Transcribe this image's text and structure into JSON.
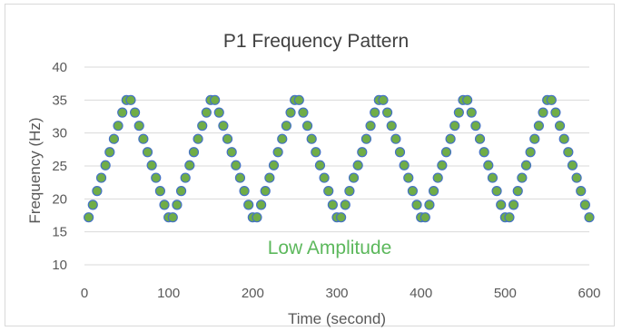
{
  "chart_data": {
    "type": "scatter",
    "title": "P1 Frequency Pattern",
    "xlabel": "Time (second)",
    "ylabel": "Frequency (Hz)",
    "xlim": [
      0,
      600
    ],
    "ylim": [
      10,
      40
    ],
    "x_ticks": [
      "0",
      "100",
      "200",
      "300",
      "400",
      "500",
      "600"
    ],
    "y_ticks": [
      "10",
      "15",
      "20",
      "25",
      "30",
      "35",
      "40"
    ],
    "annotation": "Low Amplitude",
    "grid": "horizontal",
    "legend": "none",
    "marker_fill": "#70ad47",
    "marker_edge": "#4472c4",
    "gridline_color": "#d9d9d9",
    "annotation_color": "#5cb85c",
    "points": [
      {
        "x": 5,
        "y": 17.2
      },
      {
        "x": 10,
        "y": 19.1
      },
      {
        "x": 15,
        "y": 21.2
      },
      {
        "x": 20,
        "y": 23.2
      },
      {
        "x": 25,
        "y": 25.1
      },
      {
        "x": 30,
        "y": 27.1
      },
      {
        "x": 35,
        "y": 29.1
      },
      {
        "x": 40,
        "y": 31.1
      },
      {
        "x": 45,
        "y": 33.1
      },
      {
        "x": 50,
        "y": 35.0
      },
      {
        "x": 55,
        "y": 35.0
      },
      {
        "x": 60,
        "y": 33.1
      },
      {
        "x": 65,
        "y": 31.1
      },
      {
        "x": 70,
        "y": 29.1
      },
      {
        "x": 75,
        "y": 27.1
      },
      {
        "x": 80,
        "y": 25.1
      },
      {
        "x": 85,
        "y": 23.2
      },
      {
        "x": 90,
        "y": 21.2
      },
      {
        "x": 95,
        "y": 19.1
      },
      {
        "x": 100,
        "y": 17.2
      },
      {
        "x": 105,
        "y": 17.2
      },
      {
        "x": 110,
        "y": 19.1
      },
      {
        "x": 115,
        "y": 21.2
      },
      {
        "x": 120,
        "y": 23.2
      },
      {
        "x": 125,
        "y": 25.1
      },
      {
        "x": 130,
        "y": 27.1
      },
      {
        "x": 135,
        "y": 29.1
      },
      {
        "x": 140,
        "y": 31.1
      },
      {
        "x": 145,
        "y": 33.1
      },
      {
        "x": 150,
        "y": 35.0
      },
      {
        "x": 155,
        "y": 35.0
      },
      {
        "x": 160,
        "y": 33.1
      },
      {
        "x": 165,
        "y": 31.1
      },
      {
        "x": 170,
        "y": 29.1
      },
      {
        "x": 175,
        "y": 27.1
      },
      {
        "x": 180,
        "y": 25.1
      },
      {
        "x": 185,
        "y": 23.2
      },
      {
        "x": 190,
        "y": 21.2
      },
      {
        "x": 195,
        "y": 19.1
      },
      {
        "x": 200,
        "y": 17.2
      },
      {
        "x": 205,
        "y": 17.2
      },
      {
        "x": 210,
        "y": 19.1
      },
      {
        "x": 215,
        "y": 21.2
      },
      {
        "x": 220,
        "y": 23.2
      },
      {
        "x": 225,
        "y": 25.1
      },
      {
        "x": 230,
        "y": 27.1
      },
      {
        "x": 235,
        "y": 29.1
      },
      {
        "x": 240,
        "y": 31.1
      },
      {
        "x": 245,
        "y": 33.1
      },
      {
        "x": 250,
        "y": 35.0
      },
      {
        "x": 255,
        "y": 35.0
      },
      {
        "x": 260,
        "y": 33.1
      },
      {
        "x": 265,
        "y": 31.1
      },
      {
        "x": 270,
        "y": 29.1
      },
      {
        "x": 275,
        "y": 27.1
      },
      {
        "x": 280,
        "y": 25.1
      },
      {
        "x": 285,
        "y": 23.2
      },
      {
        "x": 290,
        "y": 21.2
      },
      {
        "x": 295,
        "y": 19.1
      },
      {
        "x": 300,
        "y": 17.2
      },
      {
        "x": 305,
        "y": 17.2
      },
      {
        "x": 310,
        "y": 19.1
      },
      {
        "x": 315,
        "y": 21.2
      },
      {
        "x": 320,
        "y": 23.2
      },
      {
        "x": 325,
        "y": 25.1
      },
      {
        "x": 330,
        "y": 27.1
      },
      {
        "x": 335,
        "y": 29.1
      },
      {
        "x": 340,
        "y": 31.1
      },
      {
        "x": 345,
        "y": 33.1
      },
      {
        "x": 350,
        "y": 35.0
      },
      {
        "x": 355,
        "y": 35.0
      },
      {
        "x": 360,
        "y": 33.1
      },
      {
        "x": 365,
        "y": 31.1
      },
      {
        "x": 370,
        "y": 29.1
      },
      {
        "x": 375,
        "y": 27.1
      },
      {
        "x": 380,
        "y": 25.1
      },
      {
        "x": 385,
        "y": 23.2
      },
      {
        "x": 390,
        "y": 21.2
      },
      {
        "x": 395,
        "y": 19.1
      },
      {
        "x": 400,
        "y": 17.2
      },
      {
        "x": 405,
        "y": 17.2
      },
      {
        "x": 410,
        "y": 19.1
      },
      {
        "x": 415,
        "y": 21.2
      },
      {
        "x": 420,
        "y": 23.2
      },
      {
        "x": 425,
        "y": 25.1
      },
      {
        "x": 430,
        "y": 27.1
      },
      {
        "x": 435,
        "y": 29.1
      },
      {
        "x": 440,
        "y": 31.1
      },
      {
        "x": 445,
        "y": 33.1
      },
      {
        "x": 450,
        "y": 35.0
      },
      {
        "x": 455,
        "y": 35.0
      },
      {
        "x": 460,
        "y": 33.1
      },
      {
        "x": 465,
        "y": 31.1
      },
      {
        "x": 470,
        "y": 29.1
      },
      {
        "x": 475,
        "y": 27.1
      },
      {
        "x": 480,
        "y": 25.1
      },
      {
        "x": 485,
        "y": 23.2
      },
      {
        "x": 490,
        "y": 21.2
      },
      {
        "x": 495,
        "y": 19.1
      },
      {
        "x": 500,
        "y": 17.2
      },
      {
        "x": 505,
        "y": 17.2
      },
      {
        "x": 510,
        "y": 19.1
      },
      {
        "x": 515,
        "y": 21.2
      },
      {
        "x": 520,
        "y": 23.2
      },
      {
        "x": 525,
        "y": 25.1
      },
      {
        "x": 530,
        "y": 27.1
      },
      {
        "x": 535,
        "y": 29.1
      },
      {
        "x": 540,
        "y": 31.1
      },
      {
        "x": 545,
        "y": 33.1
      },
      {
        "x": 550,
        "y": 35.0
      },
      {
        "x": 555,
        "y": 35.0
      },
      {
        "x": 560,
        "y": 33.1
      },
      {
        "x": 565,
        "y": 31.1
      },
      {
        "x": 570,
        "y": 29.1
      },
      {
        "x": 575,
        "y": 27.1
      },
      {
        "x": 580,
        "y": 25.1
      },
      {
        "x": 585,
        "y": 23.2
      },
      {
        "x": 590,
        "y": 21.2
      },
      {
        "x": 595,
        "y": 19.1
      },
      {
        "x": 600,
        "y": 17.2
      }
    ]
  }
}
